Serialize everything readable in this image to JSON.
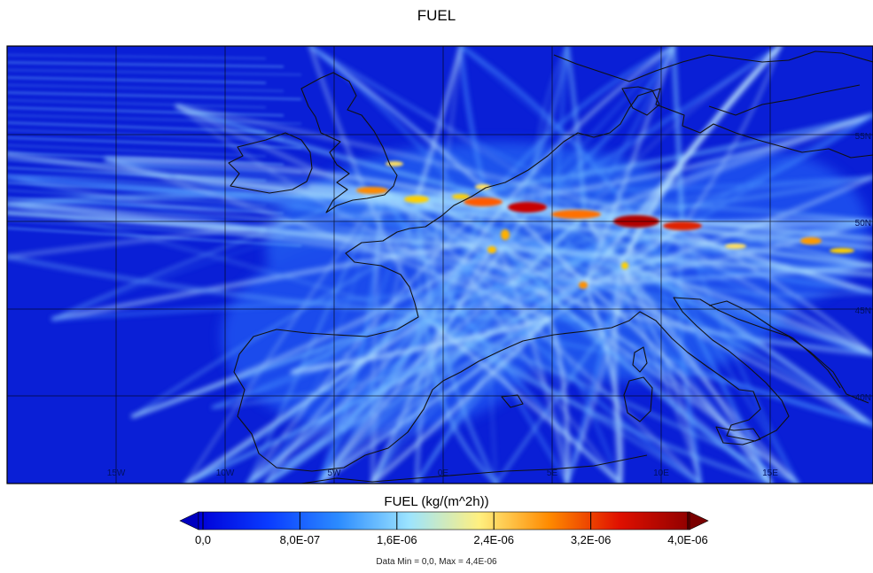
{
  "title": "FUEL",
  "colorbar": {
    "label": "FUEL (kg/(m^2h))",
    "ticks": [
      "0,0",
      "8,0E-07",
      "1,6E-06",
      "2,4E-06",
      "3,2E-06",
      "4,0E-06"
    ],
    "stops": [
      "#0000d8",
      "#0a3cff",
      "#2c8cff",
      "#9ce4ff",
      "#fff080",
      "#ff8a00",
      "#e01000",
      "#900000"
    ],
    "under_color": "#0000c0",
    "over_color": "#7a0000"
  },
  "stats_text": "Data Min = 0,0, Max = 4,4E-06",
  "map": {
    "background_color": "#0a1fd6",
    "lon_labels": [
      "15W",
      "10W",
      "5W",
      "0E",
      "5E",
      "10E",
      "15E"
    ],
    "lat_labels": [
      "55N",
      "50N",
      "45N",
      "40N"
    ]
  }
}
